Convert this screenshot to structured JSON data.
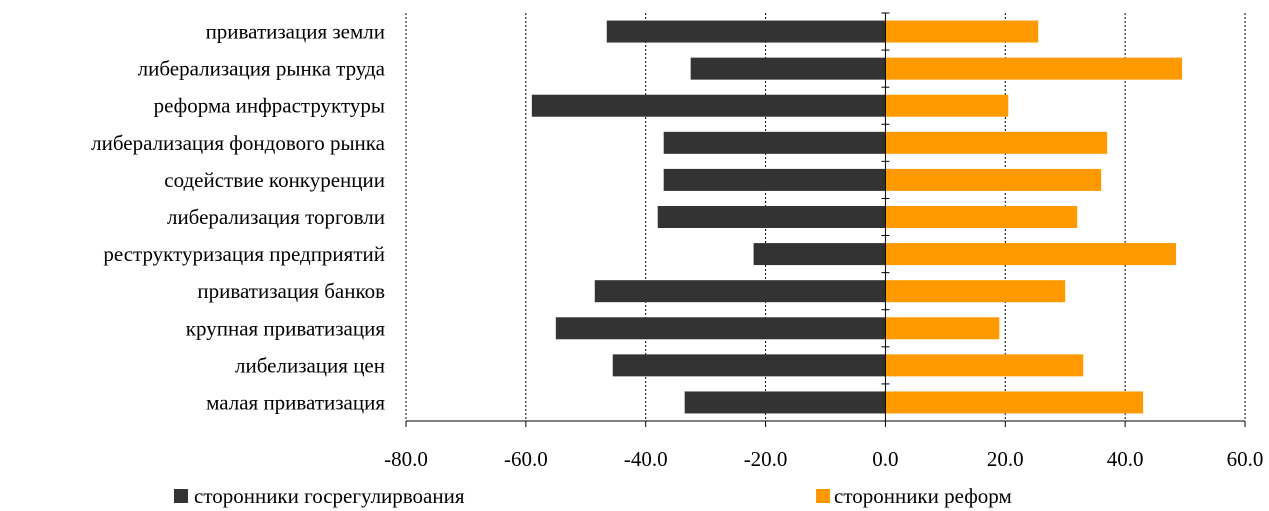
{
  "chart_data": {
    "type": "bar",
    "orientation": "horizontal",
    "categories": [
      "приватизация земли",
      "либерализация рынка труда",
      "реформа инфраструктуры",
      "либерализация фондового рынка",
      "содействие конкуренции",
      "либерализация торговли",
      "реструктуризация предприятий",
      "приватизация банков",
      "крупная приватизация",
      "либелизация цен",
      "малая приватизация"
    ],
    "series": [
      {
        "name": "сторонники госрегулирвоания",
        "color": "#333333",
        "values": [
          -46.5,
          -32.5,
          -59.0,
          -37.0,
          -37.0,
          -38.0,
          -22.0,
          -48.5,
          -55.0,
          -45.5,
          -33.5
        ]
      },
      {
        "name": "сторонники реформ",
        "color": "#ff9900",
        "values": [
          25.5,
          49.5,
          20.5,
          37.0,
          36.0,
          32.0,
          48.5,
          30.0,
          19.0,
          33.0,
          43.0
        ]
      }
    ],
    "xlim": [
      -80,
      60
    ],
    "xticks": [
      "-80.0",
      "-60.0",
      "-40.0",
      "-20.0",
      "0.0",
      "20.0",
      "40.0",
      "60.0"
    ],
    "grid": "vertical dotted",
    "legend": "bottom"
  }
}
